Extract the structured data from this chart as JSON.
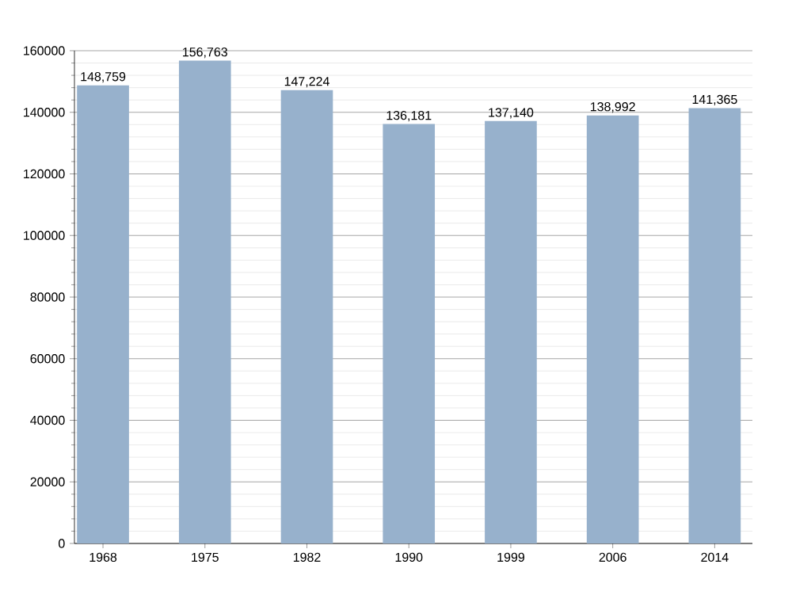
{
  "chart_data": {
    "type": "bar",
    "categories": [
      "1968",
      "1975",
      "1982",
      "1990",
      "1999",
      "2006",
      "2014"
    ],
    "values": [
      148759,
      156763,
      147224,
      136181,
      137140,
      138992,
      141365
    ],
    "value_labels": [
      "148,759",
      "156,763",
      "147,224",
      "136,181",
      "137,140",
      "138,992",
      "141,365"
    ],
    "color": "#97b1cc",
    "ylim": [
      0,
      160000
    ],
    "yticks": [
      0,
      20000,
      40000,
      60000,
      80000,
      100000,
      120000,
      140000,
      160000
    ],
    "grid": "y"
  }
}
